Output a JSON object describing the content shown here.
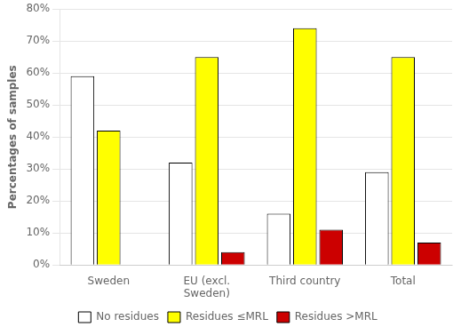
{
  "chart_data": {
    "type": "bar",
    "ylabel": "Percentages of samples",
    "categories": [
      "Sweden",
      "EU (excl.\nSweden)",
      "Third country",
      "Total"
    ],
    "series": [
      {
        "name": "No residues",
        "color": "#ffffff",
        "values": [
          59,
          32,
          16,
          29
        ]
      },
      {
        "name": "Residues ≤MRL",
        "color": "#ffff00",
        "values": [
          42,
          65,
          74,
          65
        ]
      },
      {
        "name": "Residues >MRL",
        "color": "#cc0000",
        "values": [
          0,
          4,
          11,
          7
        ]
      }
    ],
    "ylim": [
      0,
      80
    ],
    "yticks": [
      {
        "value": 0,
        "label": "0%"
      },
      {
        "value": 10,
        "label": "10%"
      },
      {
        "value": 20,
        "label": "20%"
      },
      {
        "value": 30,
        "label": "30%"
      },
      {
        "value": 40,
        "label": "40%"
      },
      {
        "value": 50,
        "label": "50%"
      },
      {
        "value": 60,
        "label": "60%"
      },
      {
        "value": 70,
        "label": "70%"
      },
      {
        "value": 80,
        "label": "80%"
      }
    ],
    "grid": true,
    "legend": "bottom"
  }
}
